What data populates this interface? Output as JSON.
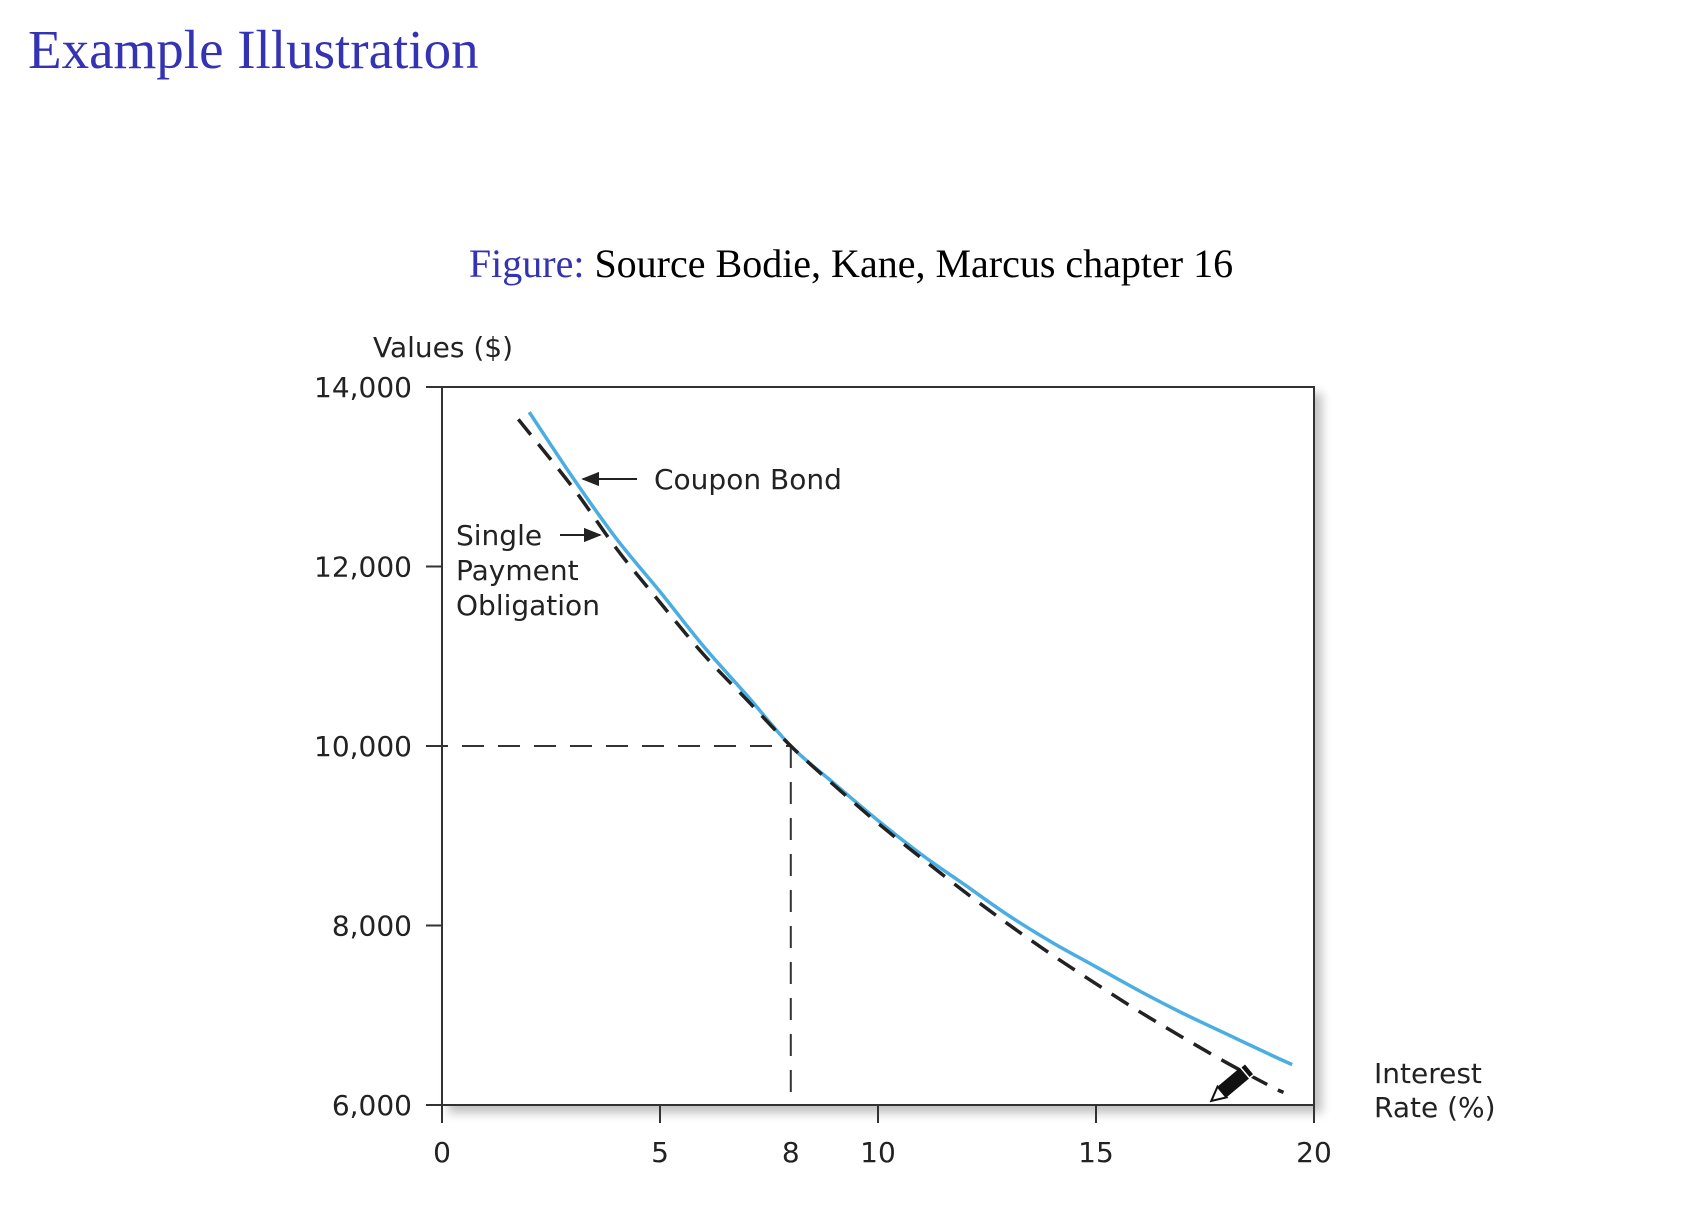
{
  "slide": {
    "title": "Example Illustration"
  },
  "figure": {
    "caption_label": "Figure:",
    "caption_text": "Source Bodie, Kane, Marcus chapter 16"
  },
  "chart_data": {
    "type": "line",
    "ylabel": "Values ($)",
    "xlabel_lines": [
      "Interest",
      "Rate (%)"
    ],
    "xlim": [
      0,
      20
    ],
    "ylim": [
      6000,
      14000
    ],
    "x_ticks": [
      0,
      5,
      8,
      10,
      15,
      20
    ],
    "y_ticks": [
      6000,
      8000,
      10000,
      12000,
      14000
    ],
    "y_tick_labels": [
      "6,000",
      "8,000",
      "10,000",
      "12,000",
      "14,000"
    ],
    "grid": false,
    "series": [
      {
        "name": "Coupon Bond",
        "style": "solid",
        "color": "#4aaee2",
        "x": [
          2,
          3,
          4,
          5,
          6,
          7,
          8,
          9,
          10,
          11,
          12,
          13,
          14,
          15,
          16,
          17,
          18,
          19,
          19.5
        ],
        "y": [
          13720,
          12990,
          12310,
          11720,
          11110,
          10560,
          10000,
          9580,
          9170,
          8790,
          8450,
          8110,
          7810,
          7540,
          7270,
          7020,
          6790,
          6560,
          6450
        ]
      },
      {
        "name": "Single Payment Obligation",
        "style": "dashed",
        "color": "#222222",
        "x": [
          1.75,
          3,
          4,
          5,
          6,
          7,
          8,
          9,
          10,
          11,
          12,
          13,
          14,
          15,
          16,
          17,
          18,
          19,
          19.3
        ],
        "y": [
          13640,
          12880,
          12200,
          11600,
          11020,
          10510,
          10000,
          9560,
          9140,
          8750,
          8370,
          8010,
          7670,
          7350,
          7040,
          6750,
          6470,
          6210,
          6140
        ]
      }
    ],
    "reference": {
      "x": 8,
      "y": 10000
    },
    "annotations": [
      {
        "text_lines": [
          "Coupon Bond"
        ],
        "points_to": "Coupon Bond"
      },
      {
        "text_lines": [
          "Single",
          "Payment",
          "Obligation"
        ],
        "points_to": "Single Payment Obligation"
      }
    ],
    "pencil_icon": "pencil-icon"
  }
}
